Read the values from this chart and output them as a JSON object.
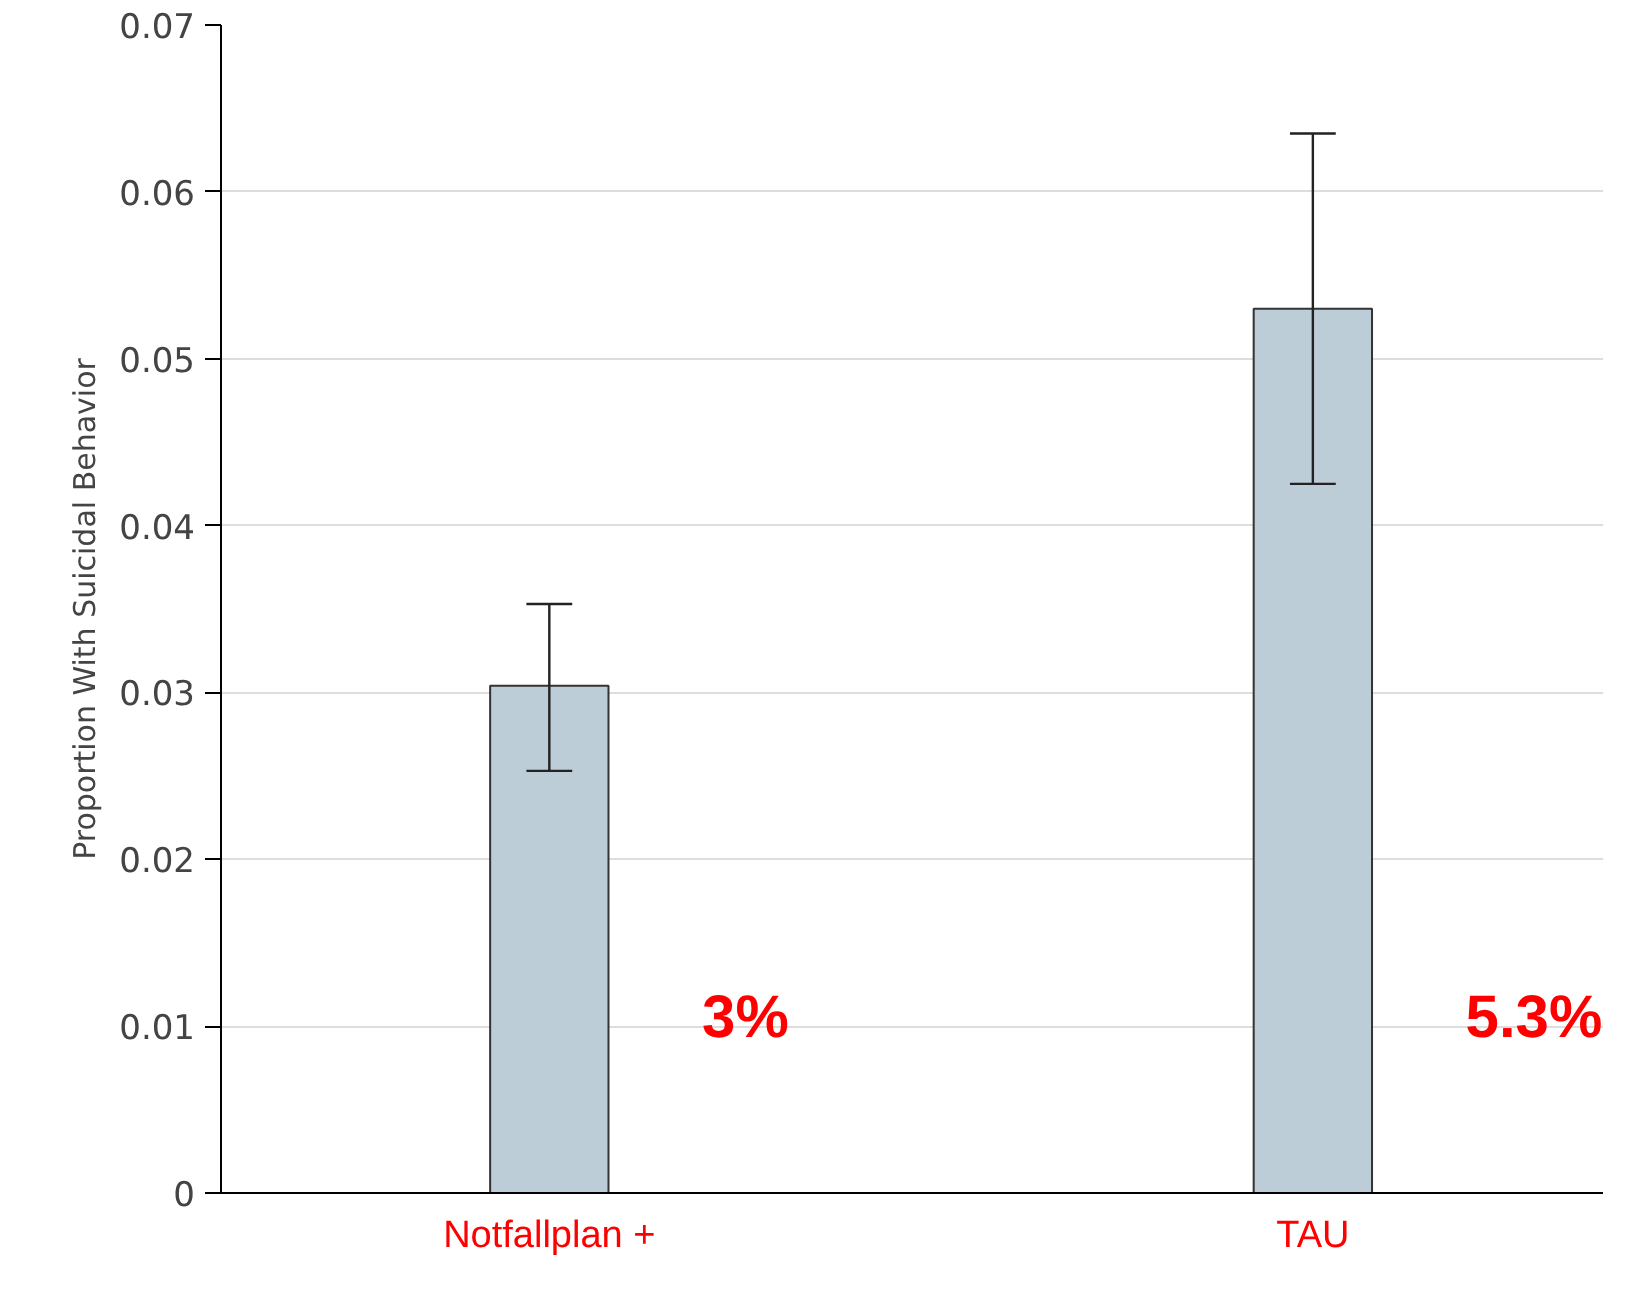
{
  "chart_data": {
    "type": "bar",
    "ylabel": "Proportion With Suicidal Behavior",
    "categories": [
      "Notfallplan +",
      "TAU"
    ],
    "values": [
      0.0304,
      0.053
    ],
    "errors": [
      [
        0.0253,
        0.0353
      ],
      [
        0.0425,
        0.0635
      ]
    ],
    "color": "#bccdd8",
    "ylim": [
      0,
      0.07
    ],
    "yticks": [
      {
        "value": 0,
        "label": "0"
      },
      0.01,
      0.02,
      0.03,
      0.04,
      0.05,
      0.06,
      0.07
    ],
    "grid": "y",
    "annotations": [
      "3%",
      "5.3%"
    ]
  }
}
